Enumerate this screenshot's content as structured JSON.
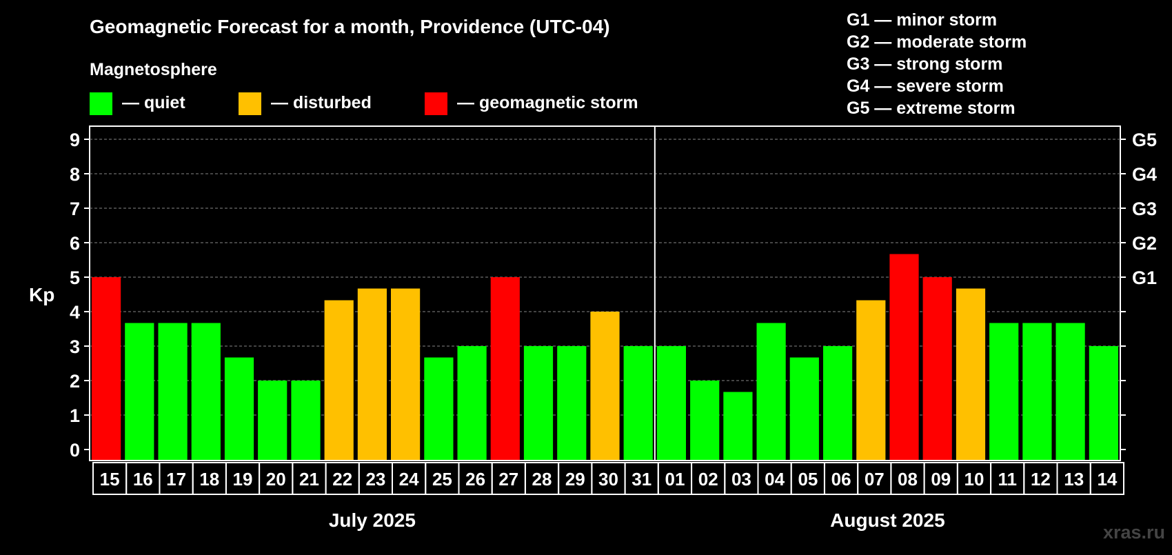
{
  "chart_data": {
    "type": "bar",
    "title": "Geomagnetic Forecast for a month, Providence (UTC-04)",
    "legend_title": "Magnetosphere",
    "legend": [
      {
        "key": "quiet",
        "label": "— quiet",
        "color": "#00ff00"
      },
      {
        "key": "disturbed",
        "label": "— disturbed",
        "color": "#ffc000"
      },
      {
        "key": "storm",
        "label": "— geomagnetic storm",
        "color": "#ff0000"
      }
    ],
    "storm_scale": [
      "G1 — minor storm",
      "G2 — moderate storm",
      "G3 — strong storm",
      "G4 — severe storm",
      "G5 — extreme storm"
    ],
    "ylabel": "Kp",
    "ylim": [
      0,
      9
    ],
    "yticks": [
      "0",
      "1",
      "2",
      "3",
      "4",
      "5",
      "6",
      "7",
      "8",
      "9"
    ],
    "right_ticks": [
      {
        "value": 5,
        "label": "G1"
      },
      {
        "value": 6,
        "label": "G2"
      },
      {
        "value": 7,
        "label": "G3"
      },
      {
        "value": 8,
        "label": "G4"
      },
      {
        "value": 9,
        "label": "G5"
      }
    ],
    "categories": [
      "15",
      "16",
      "17",
      "18",
      "19",
      "20",
      "21",
      "22",
      "23",
      "24",
      "25",
      "26",
      "27",
      "28",
      "29",
      "30",
      "31",
      "01",
      "02",
      "03",
      "04",
      "05",
      "06",
      "07",
      "08",
      "09",
      "10",
      "11",
      "12",
      "13",
      "14"
    ],
    "values": [
      5.0,
      3.67,
      3.67,
      3.67,
      2.67,
      2.0,
      2.0,
      4.33,
      4.67,
      4.67,
      2.67,
      3.0,
      5.0,
      3.0,
      3.0,
      4.0,
      3.0,
      3.0,
      2.0,
      1.67,
      3.67,
      2.67,
      3.0,
      4.33,
      5.67,
      5.0,
      4.67,
      3.67,
      3.67,
      3.67,
      3.0
    ],
    "levels": [
      "storm",
      "quiet",
      "quiet",
      "quiet",
      "quiet",
      "quiet",
      "quiet",
      "disturbed",
      "disturbed",
      "disturbed",
      "quiet",
      "quiet",
      "storm",
      "quiet",
      "quiet",
      "disturbed",
      "quiet",
      "quiet",
      "quiet",
      "quiet",
      "quiet",
      "quiet",
      "quiet",
      "disturbed",
      "storm",
      "storm",
      "disturbed",
      "quiet",
      "quiet",
      "quiet",
      "quiet"
    ],
    "months": [
      {
        "label": "July 2025",
        "count": 17
      },
      {
        "label": "August 2025",
        "count": 14
      }
    ]
  },
  "watermark": "xras.ru"
}
